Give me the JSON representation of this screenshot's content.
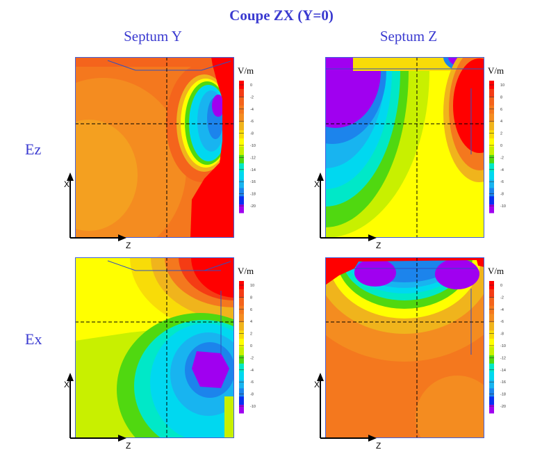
{
  "chart_data": {
    "type": "heatmap",
    "title": "Coupe ZX (Y=0)",
    "columns": [
      "Septum Y",
      "Septum Z"
    ],
    "rows": [
      "Ez",
      "Ex"
    ],
    "unit": "V/m",
    "xlabel": "Z",
    "ylabel": "X",
    "panels": [
      {
        "row": "Ez",
        "column": "Septum Y",
        "colorbar_ticks": [
          "0",
          "-2",
          "-4",
          "-6",
          "-8",
          "-10",
          "-12",
          "-14",
          "-16",
          "-18",
          "-20"
        ],
        "range": [
          -21,
          1
        ]
      },
      {
        "row": "Ez",
        "column": "Septum Z",
        "colorbar_ticks": [
          "10",
          "8",
          "6",
          "4",
          "2",
          "0",
          "-2",
          "-4",
          "-6",
          "-8",
          "-10"
        ],
        "range": [
          -11,
          11
        ]
      },
      {
        "row": "Ex",
        "column": "Septum Y",
        "colorbar_ticks": [
          "10",
          "8",
          "6",
          "4",
          "2",
          "0",
          "-2",
          "-4",
          "-6",
          "-8",
          "-10"
        ],
        "range": [
          -11,
          11
        ]
      },
      {
        "row": "Ex",
        "column": "Septum Z",
        "colorbar_ticks": [
          "0",
          "-2",
          "-4",
          "-6",
          "-8",
          "-10",
          "-12",
          "-14",
          "-16",
          "-18",
          "-20"
        ],
        "range": [
          -21,
          1
        ]
      }
    ],
    "palette": [
      "#ff0000",
      "#f43c14",
      "#f4641c",
      "#f4781e",
      "#f48c20",
      "#f0b41c",
      "#f8dc08",
      "#ffff00",
      "#c8f000",
      "#50d810",
      "#00e8c8",
      "#00d8f0",
      "#18b4f0",
      "#1c84ec",
      "#0830f0",
      "#a000f0"
    ]
  }
}
